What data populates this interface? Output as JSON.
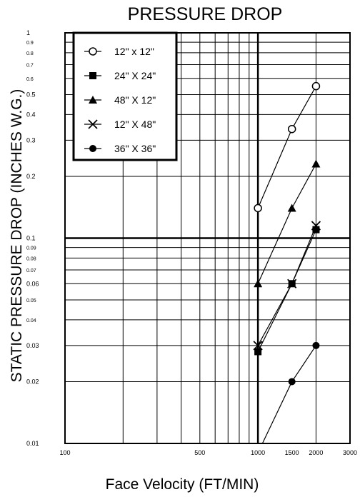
{
  "chart_data": {
    "type": "line",
    "title": "PRESSURE DROP",
    "xlabel": "Face Velocity (FT/MIN)",
    "ylabel": "STATIC PRESSURE DROP (INCHES W.G.)",
    "x_scale": "log",
    "y_scale": "log",
    "xlim": [
      100,
      3000
    ],
    "ylim": [
      0.01,
      1
    ],
    "x_ticks": [
      {
        "value": 100,
        "label": "100"
      },
      {
        "value": 500,
        "label": "500"
      },
      {
        "value": 1000,
        "label": "1000"
      },
      {
        "value": 1500,
        "label": "1500"
      },
      {
        "value": 2000,
        "label": "2000"
      },
      {
        "value": 3000,
        "label": "3000"
      }
    ],
    "y_ticks": [
      {
        "value": 1,
        "label": "1"
      },
      {
        "value": 0.9,
        "label": "0.9"
      },
      {
        "value": 0.8,
        "label": "0.8"
      },
      {
        "value": 0.7,
        "label": "0.7"
      },
      {
        "value": 0.6,
        "label": "0.6"
      },
      {
        "value": 0.5,
        "label": "0.5"
      },
      {
        "value": 0.4,
        "label": "0.4"
      },
      {
        "value": 0.3,
        "label": "0.3"
      },
      {
        "value": 0.2,
        "label": "0.2"
      },
      {
        "value": 0.1,
        "label": "0.1"
      },
      {
        "value": 0.09,
        "label": "0.09"
      },
      {
        "value": 0.08,
        "label": "0.08"
      },
      {
        "value": 0.07,
        "label": "0.07"
      },
      {
        "value": 0.06,
        "label": "0.06"
      },
      {
        "value": 0.05,
        "label": "0.05"
      },
      {
        "value": 0.04,
        "label": "0.04"
      },
      {
        "value": 0.03,
        "label": "0.03"
      },
      {
        "value": 0.02,
        "label": "0.02"
      },
      {
        "value": 0.01,
        "label": "0.01"
      }
    ],
    "grid": true,
    "legend_position": "top-left",
    "series": [
      {
        "name": "12\" x 12\"",
        "marker": "open-circle",
        "x": [
          1000,
          1500,
          2000
        ],
        "y": [
          0.14,
          0.34,
          0.55
        ]
      },
      {
        "name": "24\" X 24\"",
        "marker": "filled-square",
        "x": [
          1000,
          1500,
          2000
        ],
        "y": [
          0.028,
          0.06,
          0.11
        ]
      },
      {
        "name": "48\" X 12\"",
        "marker": "filled-triangle",
        "x": [
          1000,
          1500,
          2000
        ],
        "y": [
          0.06,
          0.14,
          0.23
        ]
      },
      {
        "name": "12\" X 48\"",
        "marker": "x-cross",
        "x": [
          1000,
          1500,
          2000
        ],
        "y": [
          0.03,
          0.06,
          0.115
        ]
      },
      {
        "name": "36\" X 36\"",
        "marker": "filled-circle",
        "x": [
          1000,
          1500,
          2000
        ],
        "y": [
          0.009,
          0.02,
          0.03
        ]
      }
    ]
  }
}
